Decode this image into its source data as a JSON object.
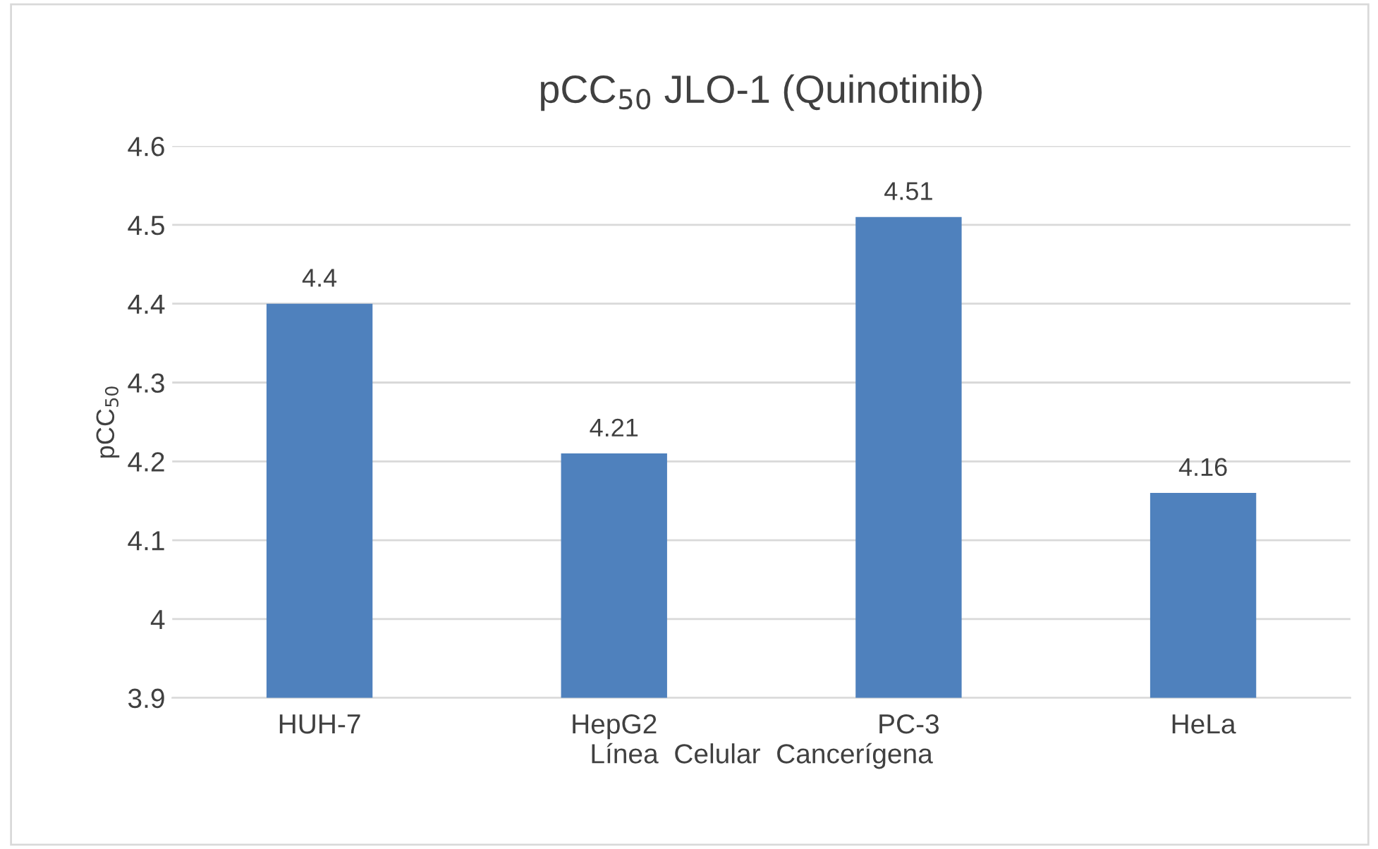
{
  "chart_data": {
    "type": "bar",
    "title": "pCC$_{50}$ JLO-1 (Quinotinib)",
    "xlabel": "Línea  Celular  Cancerígena",
    "ylabel": "pCC$_{50}$",
    "categories": [
      "HUH-7",
      "HepG2",
      "PC-3",
      "HeLa"
    ],
    "values": [
      4.4,
      4.21,
      4.51,
      4.16
    ],
    "color": "#4f81bd",
    "ylim": [
      3.9,
      4.6
    ],
    "yticks": [
      {
        "value": 3.9,
        "label": "3.9"
      },
      {
        "value": 4.0,
        "label": "4"
      },
      {
        "value": 4.1,
        "label": "4.1"
      },
      {
        "value": 4.2,
        "label": "4.2"
      },
      {
        "value": 4.3,
        "label": "4.3"
      },
      {
        "value": 4.4,
        "label": "4.4"
      },
      {
        "value": 4.5,
        "label": "4.5"
      },
      {
        "value": 4.6,
        "label": "4.6"
      }
    ],
    "grid": "y",
    "data_labels": true,
    "legend": false
  }
}
